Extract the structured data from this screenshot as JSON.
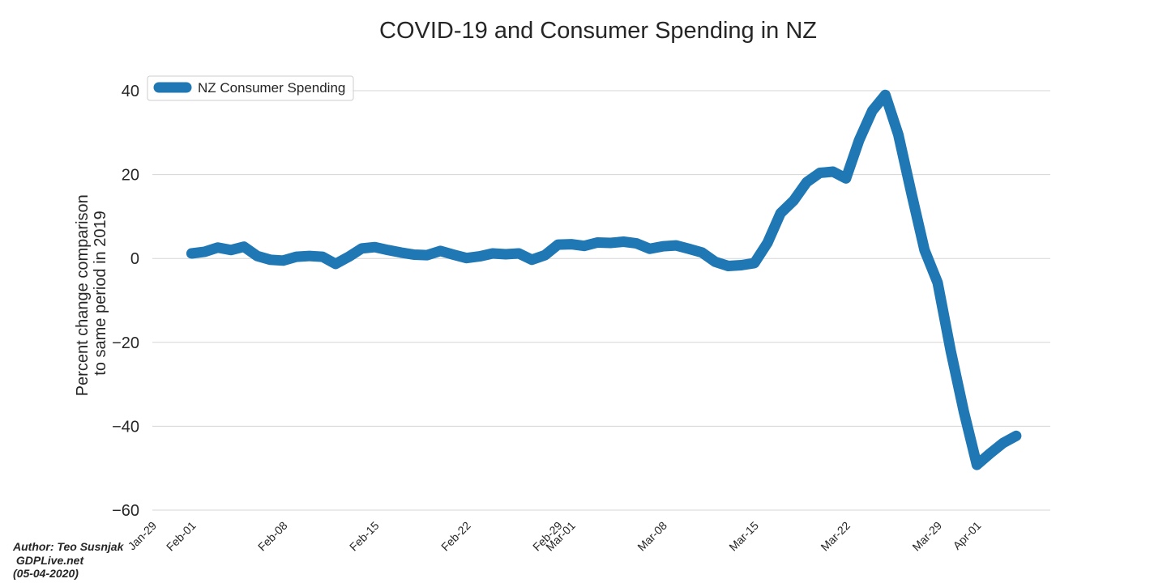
{
  "chart_data": {
    "type": "line",
    "title": "COVID-19 and Consumer Spending in NZ",
    "ylabel_lines": [
      "Percent change comparison",
      "to same period in 2019"
    ],
    "xlabel": "",
    "ylim": [
      -60,
      45
    ],
    "yticks": [
      40,
      20,
      0,
      -20,
      -40,
      -60
    ],
    "ytick_labels": [
      "40",
      "20",
      "0",
      "−20",
      "−40",
      "−60"
    ],
    "xlim_days": [
      0,
      69
    ],
    "xticks": [
      {
        "label": "Jan-29",
        "day": 0
      },
      {
        "label": "Feb-01",
        "day": 3
      },
      {
        "label": "Feb-08",
        "day": 10
      },
      {
        "label": "Feb-15",
        "day": 17
      },
      {
        "label": "Feb-22",
        "day": 24
      },
      {
        "label": "Feb-29",
        "day": 31
      },
      {
        "label": "Mar-01",
        "day": 32
      },
      {
        "label": "Mar-08",
        "day": 39
      },
      {
        "label": "Mar-15",
        "day": 46
      },
      {
        "label": "Mar-22",
        "day": 53
      },
      {
        "label": "Mar-29",
        "day": 60
      },
      {
        "label": "Apr-01",
        "day": 63
      }
    ],
    "grid": true,
    "legend_position": "top-left",
    "color": "#1f77b4",
    "series": [
      {
        "name": "NZ Consumer Spending",
        "start_day": 3,
        "values": [
          1.2,
          1.6,
          2.6,
          2.0,
          2.8,
          0.6,
          -0.3,
          -0.5,
          0.4,
          0.6,
          0.4,
          -1.3,
          0.4,
          2.4,
          2.7,
          2.0,
          1.4,
          0.9,
          0.8,
          1.8,
          0.9,
          0.1,
          0.5,
          1.2,
          1.0,
          1.2,
          -0.3,
          0.8,
          3.3,
          3.4,
          3.0,
          3.8,
          3.7,
          4.0,
          3.6,
          2.3,
          2.9,
          3.1,
          2.3,
          1.4,
          -0.8,
          -1.8,
          -1.6,
          -1.1,
          3.7,
          10.8,
          13.8,
          18.2,
          20.4,
          20.7,
          19.1,
          28.2,
          35.2,
          39.0,
          29.5,
          15.5,
          2.0,
          -5.8,
          -22.0,
          -36.5,
          -49.2,
          -46.5,
          -44.0,
          -42.3
        ]
      }
    ]
  },
  "credit": {
    "author": "Author: Teo Susnjak",
    "site": " GDPLive.net",
    "date": "(05-04-2020)"
  }
}
